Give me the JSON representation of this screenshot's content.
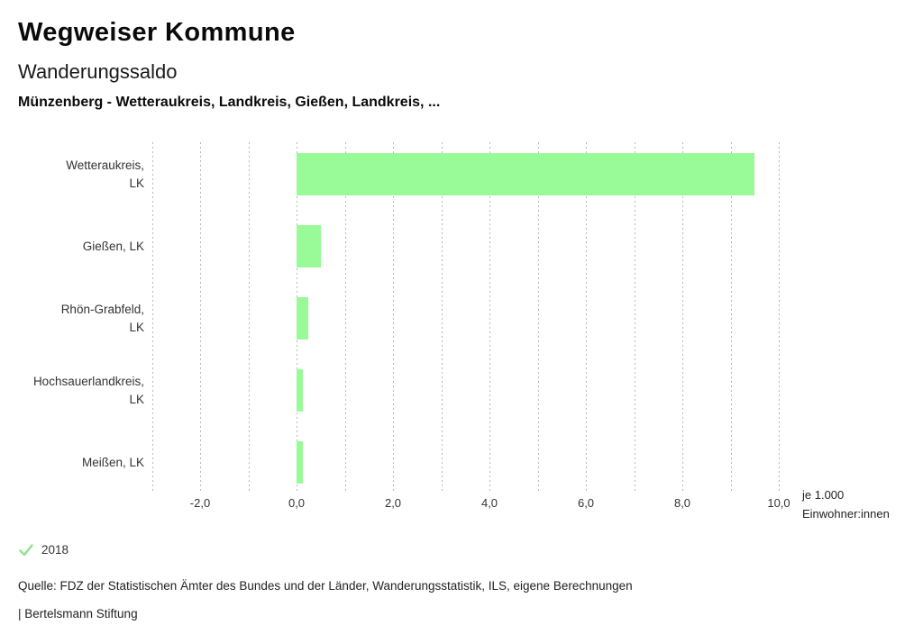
{
  "header": {
    "title": "Wegweiser Kommune",
    "subtitle": "Wanderungssaldo",
    "comparison": "Münzenberg - Wetteraukreis, Landkreis, Gießen, Landkreis, ..."
  },
  "chart_data": {
    "type": "bar",
    "orientation": "horizontal",
    "title": "Wanderungssaldo",
    "subtitle": "Münzenberg - Wetteraukreis, Landkreis, Gießen, Landkreis, ...",
    "categories": [
      "Wetteraukreis, LK",
      "Gießen, LK",
      "Rhön-Grabfeld, LK",
      "Hochsauerlandkreis, LK",
      "Meißen, LK"
    ],
    "label_lines": [
      [
        "Wetteraukreis,",
        "LK"
      ],
      [
        "Gießen, LK"
      ],
      [
        "Rhön-Grabfeld,",
        "LK"
      ],
      [
        "Hochsauerlandkreis,",
        "LK"
      ],
      [
        "Meißen, LK"
      ]
    ],
    "series": [
      {
        "name": "2018",
        "values": [
          9.5,
          0.5,
          0.25,
          0.13,
          0.13
        ]
      }
    ],
    "xlim": [
      -3.1,
      10.3
    ],
    "x_ticks": [
      -2,
      0,
      2,
      4,
      6,
      8,
      10
    ],
    "x_tick_labels": [
      "-2,0",
      "0,0",
      "2,0",
      "4,0",
      "6,0",
      "8,0",
      "10,0"
    ],
    "gridlines_at": [
      -3,
      -2,
      -1,
      0,
      1,
      2,
      3,
      4,
      5,
      6,
      7,
      8,
      9,
      10
    ],
    "grid": true,
    "unit_label_lines": [
      "je 1.000",
      "Einwohner:innen"
    ],
    "bar_color": "#98FB98",
    "legend_position": "bottom-left"
  },
  "legend": {
    "year": "2018",
    "check_color": "#8FE08F"
  },
  "footer": {
    "source": "Quelle: FDZ der Statistischen Ämter des Bundes und der Länder, Wanderungsstatistik, ILS, eigene Berechnungen",
    "branding": "| Bertelsmann Stiftung"
  }
}
